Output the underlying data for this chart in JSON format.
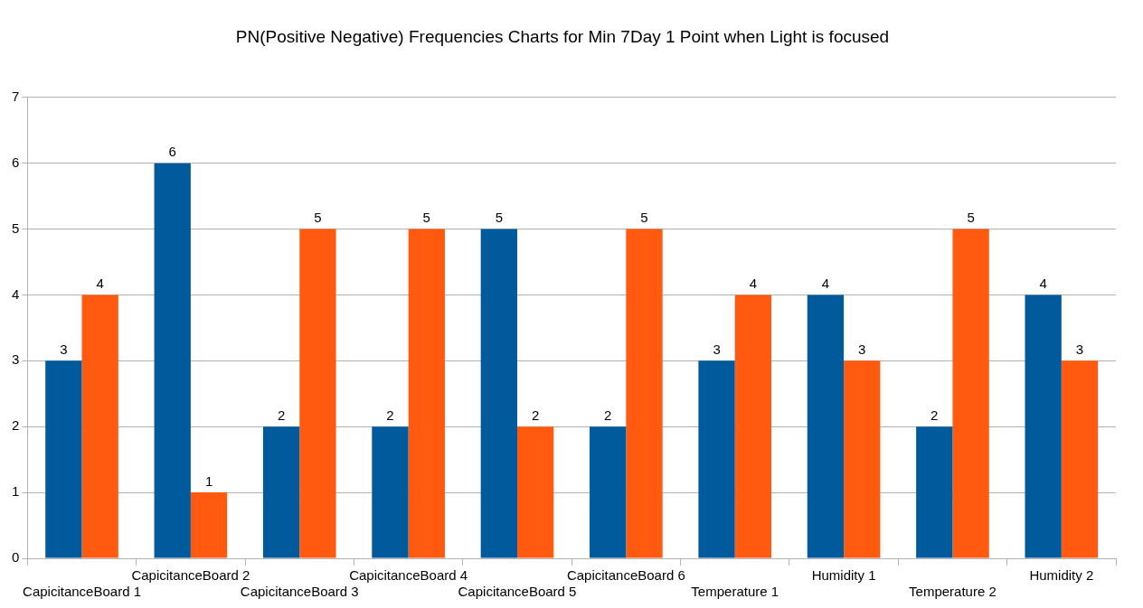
{
  "chart_data": {
    "type": "bar",
    "title": "PN(Positive Negative) Frequencies Charts for Min 7Day 1 Point when Light is focused",
    "categories": [
      "CapicitanceBoard 1",
      "CapicitanceBoard 2",
      "CapicitanceBoard 3",
      "CapicitanceBoard 4",
      "CapicitanceBoard 5",
      "CapicitanceBoard 6",
      "Temperature 1",
      "Humidity 1",
      "Temperature 2",
      "Humidity 2"
    ],
    "series": [
      {
        "color": "#005a9c",
        "values": [
          3,
          6,
          2,
          2,
          5,
          2,
          3,
          4,
          2,
          4
        ]
      },
      {
        "color": "#ff5a0f",
        "values": [
          4,
          1,
          5,
          5,
          2,
          5,
          4,
          3,
          5,
          3
        ]
      }
    ],
    "ylim": [
      0,
      7
    ],
    "yticks": [
      0,
      1,
      2,
      3,
      4,
      5,
      6,
      7
    ],
    "grid": "y",
    "legend": false,
    "data_labels": true
  }
}
